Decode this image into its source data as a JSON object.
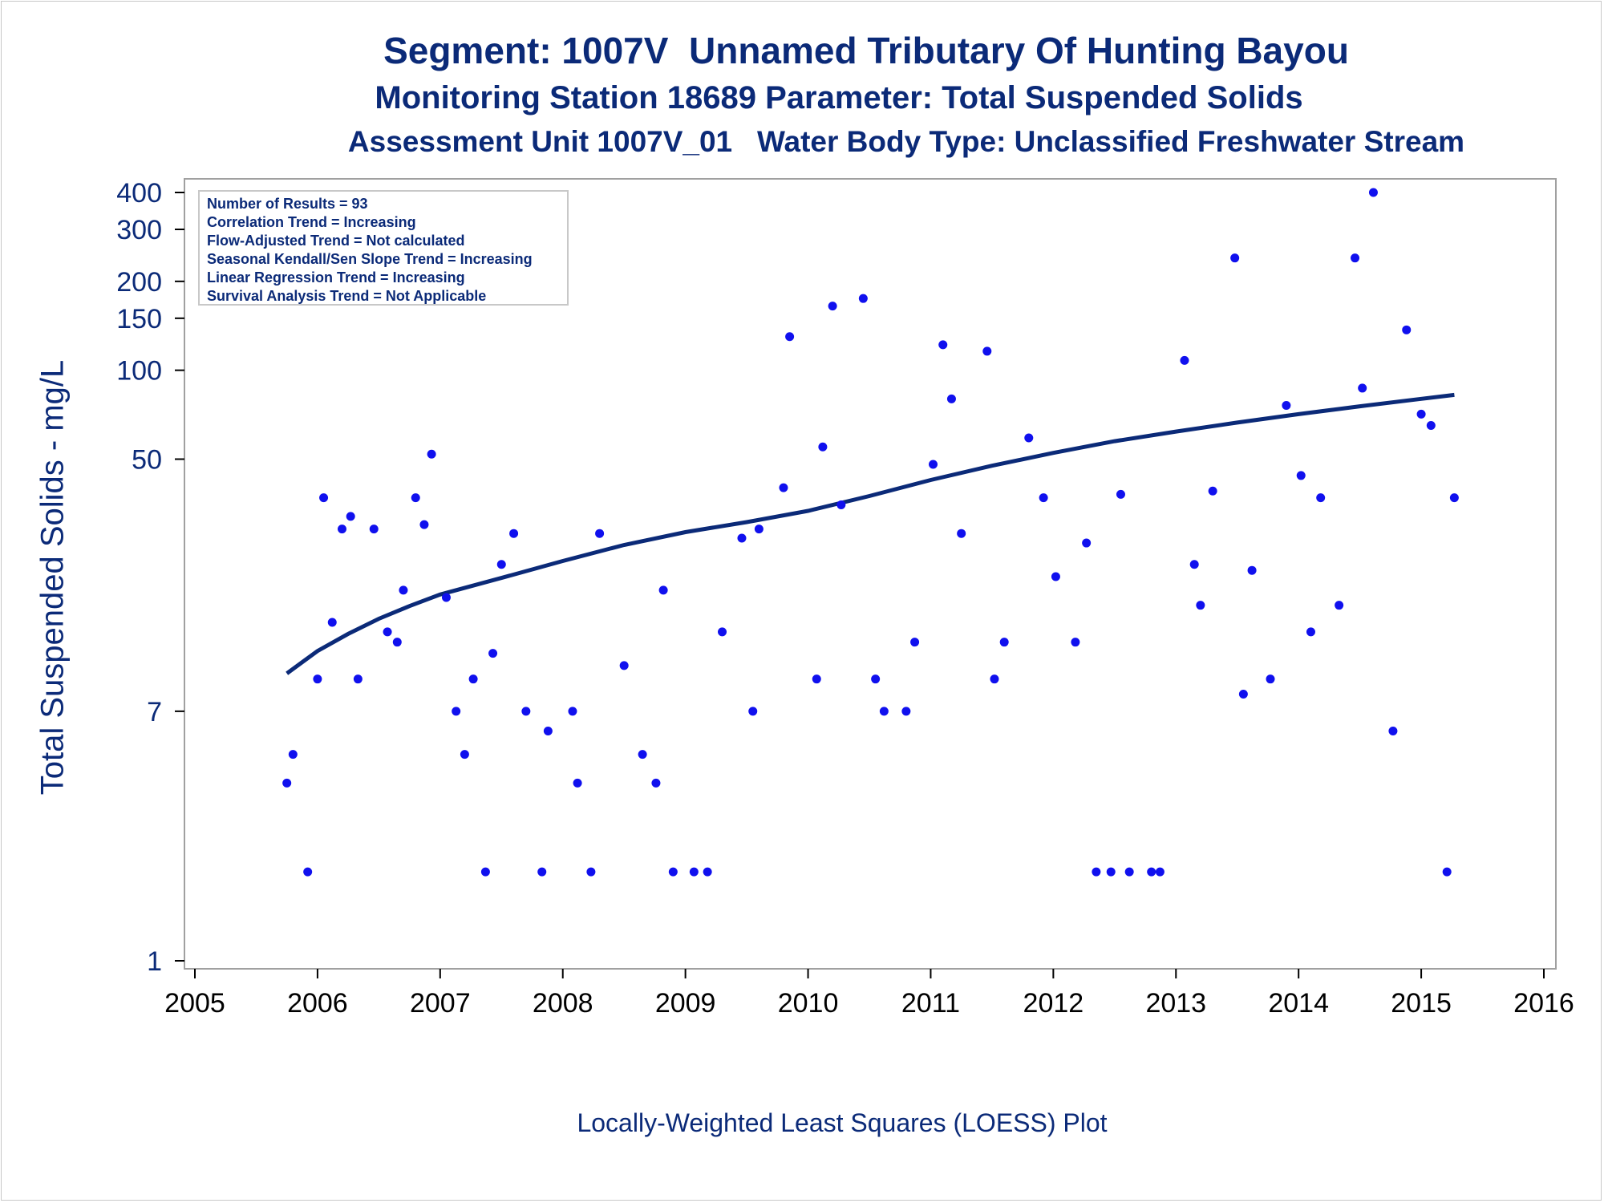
{
  "titles": {
    "line1": "Segment: 1007V  Unnamed Tributary Of Hunting Bayou",
    "line2": "Monitoring Station 18689 Parameter: Total Suspended Solids",
    "line3": "Assessment Unit 1007V_01   Water Body Type: Unclassified Freshwater Stream"
  },
  "footnote": "Locally-Weighted Least Squares (LOESS) Plot",
  "stats_box": [
    "Number of Results = 93",
    "Correlation Trend = Increasing",
    "Flow-Adjusted Trend = Not calculated",
    "Seasonal Kendall/Sen Slope Trend = Increasing",
    "Linear Regression Trend = Increasing",
    "Survival Analysis Trend = Not Applicable"
  ],
  "colors": {
    "points": "#1010ee",
    "loess": "#0b2a78",
    "text": "#0b2a78",
    "axis_frame": "#a0a0a0"
  },
  "chart_data": {
    "type": "scatter",
    "xlabel": "",
    "ylabel": "Total Suspended Solids - mg/L",
    "x_scale": "linear (year)",
    "y_scale": "log",
    "xlim": [
      2005,
      2016
    ],
    "ylim": [
      1,
      400
    ],
    "x_ticks": [
      2005,
      2006,
      2007,
      2008,
      2009,
      2010,
      2011,
      2012,
      2013,
      2014,
      2015,
      2016
    ],
    "y_ticks": [
      1,
      7,
      50,
      100,
      150,
      200,
      300,
      400
    ],
    "grid": false,
    "legend": "none",
    "points": [
      {
        "x": 2005.75,
        "y": 4
      },
      {
        "x": 2005.8,
        "y": 5
      },
      {
        "x": 2005.92,
        "y": 2
      },
      {
        "x": 2006.0,
        "y": 9
      },
      {
        "x": 2006.05,
        "y": 37
      },
      {
        "x": 2006.12,
        "y": 14
      },
      {
        "x": 2006.2,
        "y": 29
      },
      {
        "x": 2006.27,
        "y": 32
      },
      {
        "x": 2006.33,
        "y": 9
      },
      {
        "x": 2006.46,
        "y": 29
      },
      {
        "x": 2006.57,
        "y": 13
      },
      {
        "x": 2006.65,
        "y": 12
      },
      {
        "x": 2006.7,
        "y": 18
      },
      {
        "x": 2006.8,
        "y": 37
      },
      {
        "x": 2006.87,
        "y": 30
      },
      {
        "x": 2006.93,
        "y": 52
      },
      {
        "x": 2007.05,
        "y": 17
      },
      {
        "x": 2007.13,
        "y": 7
      },
      {
        "x": 2007.2,
        "y": 5
      },
      {
        "x": 2007.27,
        "y": 9
      },
      {
        "x": 2007.37,
        "y": 2
      },
      {
        "x": 2007.43,
        "y": 11
      },
      {
        "x": 2007.5,
        "y": 22
      },
      {
        "x": 2007.6,
        "y": 28
      },
      {
        "x": 2007.7,
        "y": 7
      },
      {
        "x": 2007.83,
        "y": 2
      },
      {
        "x": 2007.88,
        "y": 6
      },
      {
        "x": 2008.08,
        "y": 7
      },
      {
        "x": 2008.12,
        "y": 4
      },
      {
        "x": 2008.23,
        "y": 2
      },
      {
        "x": 2008.3,
        "y": 28
      },
      {
        "x": 2008.5,
        "y": 10
      },
      {
        "x": 2008.65,
        "y": 5
      },
      {
        "x": 2008.76,
        "y": 4
      },
      {
        "x": 2008.82,
        "y": 18
      },
      {
        "x": 2008.9,
        "y": 2
      },
      {
        "x": 2009.07,
        "y": 2
      },
      {
        "x": 2009.18,
        "y": 2
      },
      {
        "x": 2009.3,
        "y": 13
      },
      {
        "x": 2009.46,
        "y": 27
      },
      {
        "x": 2009.55,
        "y": 7
      },
      {
        "x": 2009.6,
        "y": 29
      },
      {
        "x": 2009.8,
        "y": 40
      },
      {
        "x": 2009.85,
        "y": 130
      },
      {
        "x": 2010.07,
        "y": 9
      },
      {
        "x": 2010.12,
        "y": 55
      },
      {
        "x": 2010.2,
        "y": 165
      },
      {
        "x": 2010.27,
        "y": 35
      },
      {
        "x": 2010.45,
        "y": 175
      },
      {
        "x": 2010.55,
        "y": 9
      },
      {
        "x": 2010.62,
        "y": 7
      },
      {
        "x": 2010.8,
        "y": 7
      },
      {
        "x": 2010.87,
        "y": 12
      },
      {
        "x": 2011.02,
        "y": 48
      },
      {
        "x": 2011.1,
        "y": 122
      },
      {
        "x": 2011.17,
        "y": 80
      },
      {
        "x": 2011.25,
        "y": 28
      },
      {
        "x": 2011.46,
        "y": 116
      },
      {
        "x": 2011.52,
        "y": 9
      },
      {
        "x": 2011.6,
        "y": 12
      },
      {
        "x": 2011.8,
        "y": 59
      },
      {
        "x": 2011.92,
        "y": 37
      },
      {
        "x": 2012.02,
        "y": 20
      },
      {
        "x": 2012.18,
        "y": 12
      },
      {
        "x": 2012.27,
        "y": 26
      },
      {
        "x": 2012.35,
        "y": 2
      },
      {
        "x": 2012.47,
        "y": 2
      },
      {
        "x": 2012.55,
        "y": 38
      },
      {
        "x": 2012.62,
        "y": 2
      },
      {
        "x": 2012.8,
        "y": 2
      },
      {
        "x": 2012.87,
        "y": 2
      },
      {
        "x": 2013.07,
        "y": 108
      },
      {
        "x": 2013.15,
        "y": 22
      },
      {
        "x": 2013.2,
        "y": 16
      },
      {
        "x": 2013.3,
        "y": 39
      },
      {
        "x": 2013.48,
        "y": 240
      },
      {
        "x": 2013.55,
        "y": 8
      },
      {
        "x": 2013.62,
        "y": 21
      },
      {
        "x": 2013.77,
        "y": 9
      },
      {
        "x": 2013.9,
        "y": 76
      },
      {
        "x": 2014.02,
        "y": 44
      },
      {
        "x": 2014.1,
        "y": 13
      },
      {
        "x": 2014.18,
        "y": 37
      },
      {
        "x": 2014.33,
        "y": 16
      },
      {
        "x": 2014.46,
        "y": 240
      },
      {
        "x": 2014.52,
        "y": 87
      },
      {
        "x": 2014.61,
        "y": 400
      },
      {
        "x": 2014.77,
        "y": 6
      },
      {
        "x": 2014.88,
        "y": 137
      },
      {
        "x": 2015.0,
        "y": 71
      },
      {
        "x": 2015.08,
        "y": 65
      },
      {
        "x": 2015.21,
        "y": 2
      },
      {
        "x": 2015.27,
        "y": 37
      }
    ],
    "loess": [
      {
        "x": 2005.75,
        "y": 9.4
      },
      {
        "x": 2006.0,
        "y": 11.2
      },
      {
        "x": 2006.25,
        "y": 12.8
      },
      {
        "x": 2006.5,
        "y": 14.4
      },
      {
        "x": 2006.75,
        "y": 15.9
      },
      {
        "x": 2007.0,
        "y": 17.4
      },
      {
        "x": 2007.5,
        "y": 19.8
      },
      {
        "x": 2008.0,
        "y": 22.6
      },
      {
        "x": 2008.5,
        "y": 25.6
      },
      {
        "x": 2009.0,
        "y": 28.3
      },
      {
        "x": 2009.5,
        "y": 30.6
      },
      {
        "x": 2010.0,
        "y": 33.4
      },
      {
        "x": 2010.5,
        "y": 37.5
      },
      {
        "x": 2011.0,
        "y": 42.5
      },
      {
        "x": 2011.5,
        "y": 47.5
      },
      {
        "x": 2012.0,
        "y": 52.5
      },
      {
        "x": 2012.5,
        "y": 57.5
      },
      {
        "x": 2013.0,
        "y": 62.0
      },
      {
        "x": 2013.5,
        "y": 66.5
      },
      {
        "x": 2014.0,
        "y": 71.0
      },
      {
        "x": 2014.5,
        "y": 75.5
      },
      {
        "x": 2015.0,
        "y": 80.0
      },
      {
        "x": 2015.27,
        "y": 82.5
      }
    ]
  }
}
